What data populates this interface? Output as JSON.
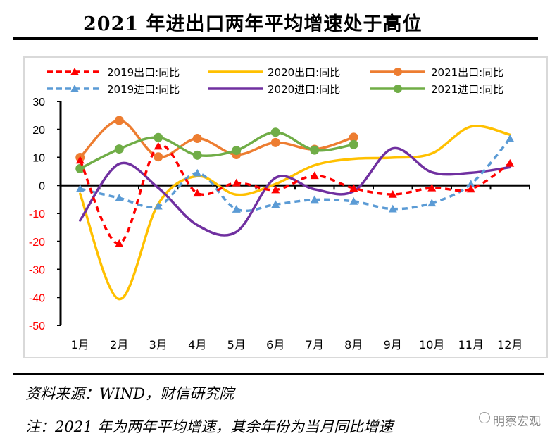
{
  "title": "2021 年进出口两年平均增速处于高位",
  "footer": {
    "source": "资料来源：WIND，财信研究院",
    "note": "注：2021 年为两年平均增速，其余年份为当月同比增速",
    "watermark": "明察宏观"
  },
  "chart_data": {
    "type": "line",
    "title": "2021 年进出口两年平均增速处于高位",
    "xlabel": "",
    "ylabel": "",
    "ylim": [
      -50,
      30
    ],
    "yticks": [
      30,
      20,
      10,
      0,
      -10,
      -20,
      -30,
      -40,
      -50
    ],
    "ytick_labels": [
      "30",
      "20",
      "10",
      "0",
      "-10",
      "-20",
      "-30",
      "-40",
      "-50"
    ],
    "negative_tick_color": "#ff0000",
    "positive_tick_color": "#000000",
    "categories": [
      "1月",
      "2月",
      "3月",
      "4月",
      "5月",
      "6月",
      "7月",
      "8月",
      "9月",
      "10月",
      "11月",
      "12月"
    ],
    "grid": false,
    "legend_position": "top",
    "series": [
      {
        "name": "2019出口:同比",
        "color": "#ff0000",
        "dash": true,
        "marker": "triangle",
        "values": [
          9,
          -20.8,
          14,
          -2.8,
          0.9,
          -1.6,
          3.5,
          -1,
          -3.2,
          -0.9,
          -1.3,
          7.9
        ]
      },
      {
        "name": "2020出口:同比",
        "color": "#ffc000",
        "dash": false,
        "marker": "none",
        "values": [
          -3,
          -40.6,
          -6.6,
          3.3,
          -3.3,
          0.5,
          7.2,
          9.5,
          9.9,
          11.4,
          21,
          18.1
        ]
      },
      {
        "name": "2021出口:同比",
        "color": "#ed7d31",
        "dash": false,
        "marker": "circle",
        "values": [
          10,
          23.2,
          10.2,
          16.8,
          11,
          15.3,
          12.9,
          17.2,
          null,
          null,
          null,
          null
        ]
      },
      {
        "name": "2019进口:同比",
        "color": "#5b9bd5",
        "dash": true,
        "marker": "triangle",
        "values": [
          -1.2,
          -4.5,
          -7.4,
          4.4,
          -8.5,
          -6.8,
          -5.1,
          -5.7,
          -8.4,
          -6.3,
          0.5,
          16.7
        ]
      },
      {
        "name": "2020进口:同比",
        "color": "#7030a0",
        "dash": false,
        "marker": "none",
        "values": [
          -12.5,
          7.7,
          -0.9,
          -14.2,
          -16.6,
          2.7,
          -1.4,
          -2.1,
          13.2,
          4.7,
          4.5,
          6.5
        ]
      },
      {
        "name": "2021进口:同比",
        "color": "#70ad47",
        "dash": false,
        "marker": "circle",
        "values": [
          6,
          13,
          17.1,
          10.8,
          12.5,
          19,
          12.6,
          14.6,
          null,
          null,
          null,
          null
        ]
      }
    ]
  }
}
